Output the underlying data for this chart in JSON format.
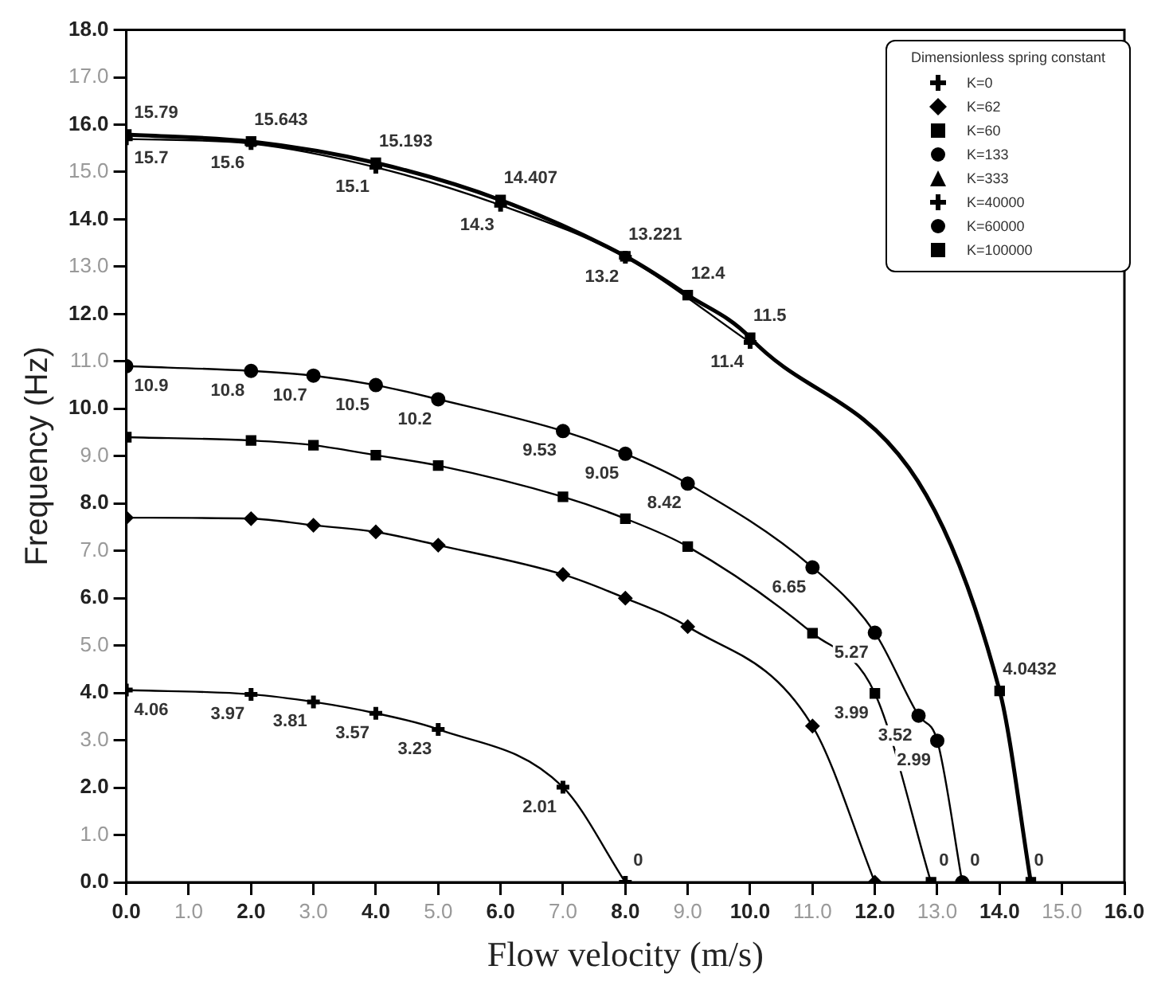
{
  "chart_data": {
    "type": "line",
    "xlabel": "Flow velocity (m/s)",
    "ylabel": "Frequency (Hz)",
    "legend_title": "Dimensionless spring constant",
    "legend": "top right",
    "grid": false,
    "xlim": [
      0,
      16
    ],
    "ylim": [
      0,
      18
    ],
    "xticks": [
      {
        "value": 0,
        "label": "0.0"
      },
      {
        "value": 1,
        "label": "1.0"
      },
      {
        "value": 2,
        "label": "2.0"
      },
      {
        "value": 3,
        "label": "3.0"
      },
      {
        "value": 4,
        "label": "4.0"
      },
      {
        "value": 5,
        "label": "5.0"
      },
      {
        "value": 6,
        "label": "6.0"
      },
      {
        "value": 7,
        "label": "7.0"
      },
      {
        "value": 8,
        "label": "8.0"
      },
      {
        "value": 9,
        "label": "9.0"
      },
      {
        "value": 10,
        "label": "10.0"
      },
      {
        "value": 11,
        "label": "11.0"
      },
      {
        "value": 12,
        "label": "12.0"
      },
      {
        "value": 13,
        "label": "13.0"
      },
      {
        "value": 14,
        "label": "14.0"
      },
      {
        "value": 15,
        "label": "15.0"
      },
      {
        "value": 16,
        "label": "16.0"
      }
    ],
    "yticks": [
      {
        "value": 0,
        "label": "0.0"
      },
      {
        "value": 1,
        "label": "1.0"
      },
      {
        "value": 2,
        "label": "2.0"
      },
      {
        "value": 3,
        "label": "3.0"
      },
      {
        "value": 4,
        "label": "4.0"
      },
      {
        "value": 5,
        "label": "5.0"
      },
      {
        "value": 6,
        "label": "6.0"
      },
      {
        "value": 7,
        "label": "7.0"
      },
      {
        "value": 8,
        "label": "8.0"
      },
      {
        "value": 9,
        "label": "9.0"
      },
      {
        "value": 10,
        "label": "10.0"
      },
      {
        "value": 11,
        "label": "11.0"
      },
      {
        "value": 12,
        "label": "12.0"
      },
      {
        "value": 13,
        "label": "13.0"
      },
      {
        "value": 14,
        "label": "14.0"
      },
      {
        "value": 15,
        "label": "15.0"
      },
      {
        "value": 16,
        "label": "16.0"
      },
      {
        "value": 17,
        "label": "17.0"
      },
      {
        "value": 18,
        "label": "18.0"
      }
    ],
    "series": [
      {
        "name": "K=0",
        "color": "#000000",
        "marker": "cross",
        "x": [
          0,
          2,
          3,
          4,
          5,
          7,
          8
        ],
        "values": [
          4.06,
          3.97,
          3.81,
          3.57,
          3.23,
          2.01,
          0
        ],
        "value_labels": [
          "4.06",
          "3.97",
          "3.81",
          "3.57",
          "3.23",
          "2.01",
          "0"
        ]
      },
      {
        "name": "K=62",
        "color": "#000000",
        "marker": "diamond",
        "x": [
          0,
          2,
          3,
          4,
          5,
          7,
          8,
          9,
          11,
          12
        ],
        "values": [
          7.7,
          7.68,
          7.54,
          7.4,
          7.12,
          6.5,
          6.0,
          5.4,
          3.3,
          0
        ]
      },
      {
        "name": "K=60",
        "color": "#000000",
        "marker": "square",
        "x": [
          0,
          2,
          3,
          4,
          5,
          7,
          8,
          9,
          11,
          12,
          12.9
        ],
        "values": [
          9.4,
          9.33,
          9.23,
          9.02,
          8.8,
          8.14,
          7.68,
          7.09,
          5.26,
          3.99,
          0
        ],
        "value_labels": [
          null,
          null,
          null,
          null,
          null,
          null,
          null,
          null,
          null,
          "3.99",
          "0"
        ]
      },
      {
        "name": "K=133",
        "color": "#000000",
        "marker": "circle",
        "x": [
          0,
          2,
          3,
          4,
          5,
          7,
          8,
          9,
          11,
          12,
          12.7,
          13,
          13.4
        ],
        "values": [
          10.9,
          10.8,
          10.7,
          10.5,
          10.2,
          9.53,
          9.05,
          8.42,
          6.65,
          5.27,
          3.52,
          2.99,
          0
        ],
        "value_labels": [
          "10.9",
          "10.8",
          "10.7",
          "10.5",
          "10.2",
          "9.53",
          "9.05",
          "8.42",
          "6.65",
          "5.27",
          "3.52",
          "2.99",
          "0"
        ]
      },
      {
        "name": "K=333",
        "color": "#000000",
        "marker": "triangle"
      },
      {
        "name": "K=40000",
        "color": "#000000",
        "marker": "cross",
        "x": [
          0,
          2,
          4,
          6,
          8,
          10
        ],
        "values": [
          15.7,
          15.6,
          15.1,
          14.3,
          13.2,
          11.4
        ],
        "value_labels": [
          "15.7",
          "15.6",
          "15.1",
          "14.3",
          "13.2",
          "11.4"
        ]
      },
      {
        "name": "K=60000",
        "color": "#000000",
        "marker": "circle"
      },
      {
        "name": "K=100000",
        "color": "#000000",
        "marker": "square",
        "x": [
          0,
          2,
          4,
          6,
          8,
          9,
          10,
          14,
          14.5
        ],
        "values": [
          15.79,
          15.643,
          15.193,
          14.407,
          13.221,
          12.4,
          11.5,
          4.0432,
          0
        ],
        "value_labels": [
          "15.79",
          "15.643",
          "15.193",
          "14.407",
          "13.221",
          "12.4",
          "11.5",
          "4.0432",
          "0"
        ]
      }
    ]
  }
}
